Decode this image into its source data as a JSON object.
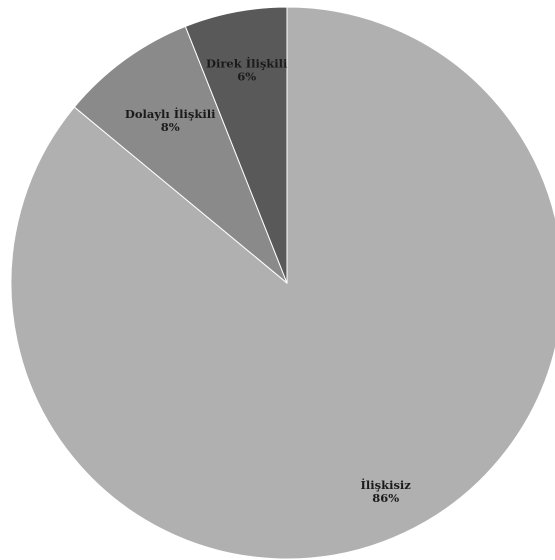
{
  "chart_data": {
    "type": "pie",
    "start_angle_deg": 0,
    "direction": "clockwise",
    "legend": "none",
    "slices": [
      {
        "label": "İlişkisiz",
        "value": 86,
        "value_label": "86%",
        "color": "#b0b0b0"
      },
      {
        "label": "Dolaylı İlişkili",
        "value": 8,
        "value_label": "8%",
        "color": "#8a8a8a"
      },
      {
        "label": "Direk İlişkili",
        "value": 6,
        "value_label": "6%",
        "color": "#595959"
      }
    ]
  }
}
